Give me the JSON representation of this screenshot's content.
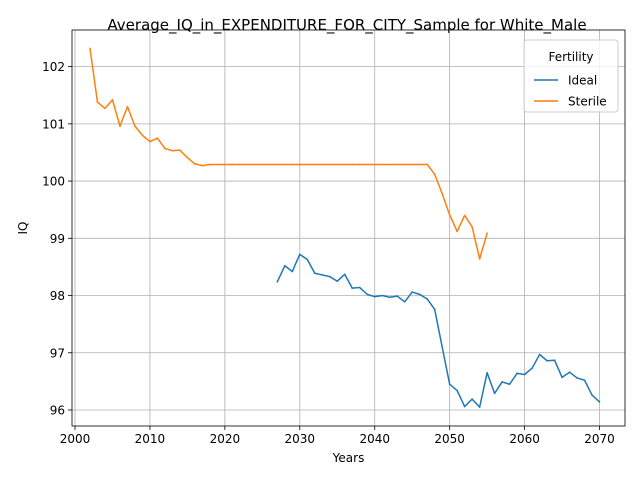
{
  "chart_data": {
    "type": "line",
    "title": "Average_IQ_in_EXPENDITURE_FOR_CITY_Sample for White_Male",
    "xlabel": "Years",
    "ylabel": "IQ",
    "xlim": [
      1999.6,
      2073.4
    ],
    "ylim": [
      95.72,
      102.64
    ],
    "xticks": [
      2000,
      2010,
      2020,
      2030,
      2040,
      2050,
      2060,
      2070
    ],
    "yticks": [
      96,
      97,
      98,
      99,
      100,
      101,
      102
    ],
    "grid": true,
    "legend": {
      "title": "Fertility",
      "placement": "top-right"
    },
    "series": [
      {
        "name": "Ideal",
        "color": "#1f77b4",
        "x": [
          2027,
          2028,
          2029,
          2030,
          2031,
          2032,
          2033,
          2034,
          2035,
          2036,
          2037,
          2038,
          2039,
          2040,
          2041,
          2042,
          2043,
          2044,
          2045,
          2046,
          2047,
          2048,
          2049,
          2050,
          2051,
          2052,
          2053,
          2054,
          2055,
          2056,
          2057,
          2058,
          2059,
          2060,
          2061,
          2062,
          2063,
          2064,
          2065,
          2066,
          2067,
          2068,
          2069,
          2070
        ],
        "y": [
          98.24,
          98.52,
          98.42,
          98.72,
          98.63,
          98.39,
          98.36,
          98.33,
          98.25,
          98.37,
          98.13,
          98.14,
          98.02,
          97.98,
          98.0,
          97.97,
          97.99,
          97.89,
          98.06,
          98.02,
          97.94,
          97.76,
          97.1,
          96.45,
          96.34,
          96.06,
          96.19,
          96.05,
          96.65,
          96.29,
          96.49,
          96.45,
          96.64,
          96.62,
          96.73,
          96.97,
          96.86,
          96.87,
          96.57,
          96.66,
          96.56,
          96.52,
          96.26,
          96.14
        ]
      },
      {
        "name": "Sterile",
        "color": "#ff7f0e",
        "x": [
          2002,
          2003,
          2004,
          2005,
          2006,
          2007,
          2008,
          2009,
          2010,
          2011,
          2012,
          2013,
          2014,
          2015,
          2016,
          2017,
          2018,
          2019,
          2020,
          2021,
          2022,
          2023,
          2024,
          2025,
          2026,
          2027,
          2028,
          2029,
          2030,
          2031,
          2032,
          2033,
          2034,
          2035,
          2036,
          2037,
          2038,
          2039,
          2040,
          2041,
          2042,
          2043,
          2044,
          2045,
          2046,
          2047,
          2048,
          2049,
          2050,
          2051,
          2052,
          2053,
          2054,
          2055
        ],
        "y": [
          102.32,
          101.38,
          101.27,
          101.42,
          100.96,
          101.3,
          100.96,
          100.8,
          100.69,
          100.75,
          100.57,
          100.53,
          100.54,
          100.41,
          100.3,
          100.27,
          100.29,
          100.29,
          100.29,
          100.29,
          100.29,
          100.29,
          100.29,
          100.29,
          100.29,
          100.29,
          100.29,
          100.29,
          100.29,
          100.29,
          100.29,
          100.29,
          100.29,
          100.29,
          100.29,
          100.29,
          100.29,
          100.29,
          100.29,
          100.29,
          100.29,
          100.29,
          100.29,
          100.29,
          100.29,
          100.29,
          100.12,
          99.78,
          99.41,
          99.12,
          99.4,
          99.2,
          98.64,
          99.09
        ]
      }
    ]
  }
}
